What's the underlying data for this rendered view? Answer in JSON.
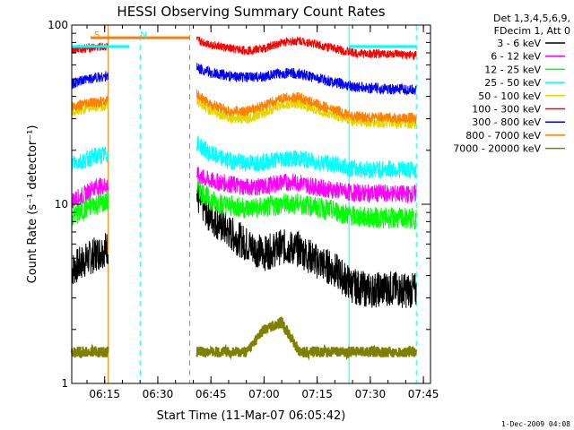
{
  "chart_data": {
    "type": "line",
    "title": "HESSI Observing Summary Count Rates",
    "xlabel": "Start Time (11-Mar-07 06:05:42)",
    "ylabel": "Count Rate (s⁻¹ detector⁻¹)",
    "y_scale": "log",
    "ylim": [
      1,
      100
    ],
    "xlim": [
      "06:05:42",
      "07:47:00"
    ],
    "x_ticks": [
      "06:15",
      "06:30",
      "06:45",
      "07:00",
      "07:15",
      "07:30",
      "07:45"
    ],
    "y_ticks": [
      "1",
      "10",
      "100"
    ],
    "legend_header": [
      "Det 1,3,4,5,6,9,",
      "FDecim 1, Att 0"
    ],
    "legend_position": "right",
    "footer": "1-Dec-2009 04:08",
    "annotations": [
      {
        "text": "S",
        "at": "06:11",
        "color": "#ff7f00"
      },
      {
        "text": "N",
        "at": "06:24",
        "color": "#00ffff"
      }
    ],
    "vertical_markers": [
      {
        "at": "06:05:42",
        "color": "#00ffff",
        "style": "solid"
      },
      {
        "at": "06:16",
        "color": "#ff7f00",
        "style": "solid"
      },
      {
        "at": "06:25",
        "color": "#00ffff",
        "style": "dashed"
      },
      {
        "at": "06:39",
        "color": "#ff7f00",
        "style": "dashed"
      },
      {
        "at": "07:24",
        "color": "#00ffff",
        "style": "solid"
      },
      {
        "at": "07:43",
        "color": "#00ffff",
        "style": "dashed"
      }
    ],
    "state_bars": [
      {
        "flag": "S",
        "from": "06:11",
        "to": "06:39",
        "value": 85,
        "color": "#ff7f00"
      },
      {
        "flag": "N",
        "from": "06:05:42",
        "to": "06:22",
        "value": 76,
        "color": "#00ffff"
      },
      {
        "flag": "N",
        "from": "07:24",
        "to": "07:43",
        "value": 76,
        "color": "#00ffff"
      }
    ],
    "x": [
      "06:05:42",
      "06:09",
      "06:12",
      "06:41",
      "06:45",
      "06:50",
      "06:55",
      "07:00",
      "07:05",
      "07:10",
      "07:15",
      "07:20",
      "07:25",
      "07:30",
      "07:35",
      "07:40",
      "07:43"
    ],
    "series": [
      {
        "name": "3 - 6 keV",
        "color": "#000000",
        "values": [
          4.3,
          4.8,
          5.2,
          11.0,
          8.5,
          7.0,
          6.0,
          5.3,
          5.8,
          5.6,
          4.8,
          4.3,
          3.5,
          3.3,
          3.4,
          3.3,
          3.3
        ]
      },
      {
        "name": "6 - 12 keV",
        "color": "#ff00ff",
        "values": [
          10.5,
          11.2,
          12.5,
          14.5,
          13.5,
          13.0,
          12.5,
          12.5,
          13.3,
          13.2,
          12.4,
          12.0,
          11.6,
          11.5,
          11.5,
          11.4,
          11.4
        ]
      },
      {
        "name": "12 - 25 keV",
        "color": "#00ff00",
        "values": [
          8.5,
          9.2,
          10.0,
          12.5,
          10.5,
          9.8,
          9.5,
          9.6,
          10.0,
          10.1,
          9.6,
          9.2,
          8.6,
          8.4,
          8.4,
          8.3,
          8.3
        ]
      },
      {
        "name": "25 - 50 keV",
        "color": "#00ffff",
        "values": [
          17.0,
          17.5,
          18.5,
          22.0,
          19.0,
          17.5,
          17.0,
          17.2,
          18.0,
          18.0,
          17.2,
          16.6,
          15.8,
          15.6,
          15.7,
          15.6,
          15.6
        ]
      },
      {
        "name": "50 - 100 keV",
        "color": "#e6d600",
        "values": [
          33.0,
          34.0,
          35.0,
          38.0,
          33.0,
          30.5,
          30.0,
          32.5,
          36.0,
          36.5,
          33.5,
          31.5,
          29.0,
          28.5,
          28.5,
          28.3,
          28.3
        ]
      },
      {
        "name": "100 - 300 keV",
        "color": "#ff0000",
        "values": [
          73.0,
          74.0,
          75.0,
          82.0,
          78.0,
          74.0,
          72.0,
          74.0,
          80.0,
          82.0,
          78.0,
          74.0,
          70.0,
          69.0,
          69.0,
          68.0,
          68.0
        ]
      },
      {
        "name": "300 - 800 keV",
        "color": "#0000ff",
        "values": [
          47.0,
          49.0,
          51.0,
          58.0,
          54.0,
          52.0,
          51.0,
          51.5,
          54.0,
          53.5,
          50.5,
          48.0,
          45.5,
          44.5,
          44.0,
          43.5,
          43.5
        ]
      },
      {
        "name": "800 - 7000 keV",
        "color": "#ff7f00",
        "values": [
          35.0,
          36.0,
          37.0,
          41.0,
          36.0,
          33.0,
          33.0,
          35.5,
          39.0,
          39.5,
          36.0,
          33.5,
          31.0,
          30.5,
          30.5,
          30.2,
          30.2
        ]
      },
      {
        "name": "7000 - 20000 keV",
        "color": "#808000",
        "values": [
          1.5,
          1.5,
          1.5,
          1.5,
          1.5,
          1.5,
          1.5,
          2.0,
          2.2,
          1.5,
          1.5,
          1.5,
          1.5,
          1.5,
          1.5,
          1.5,
          1.5
        ]
      }
    ]
  }
}
